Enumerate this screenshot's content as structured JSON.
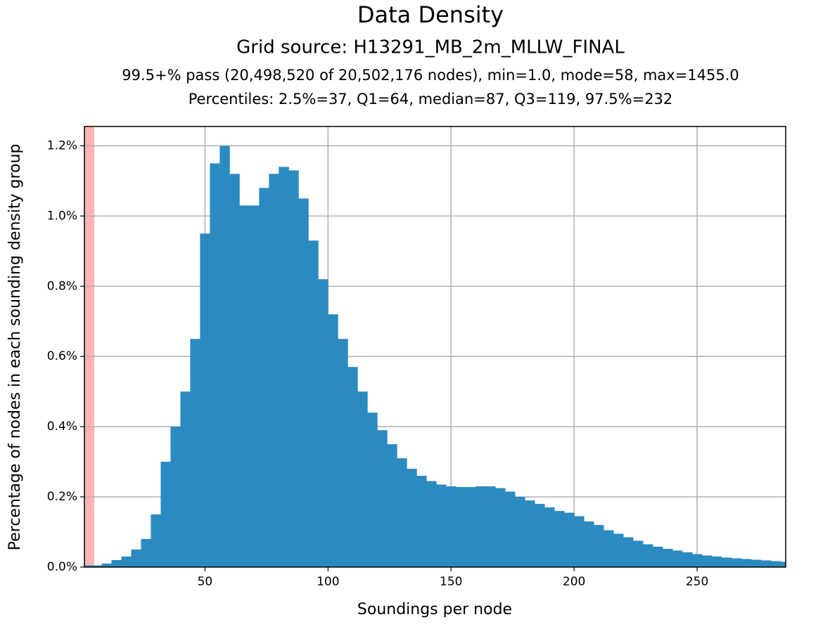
{
  "chart_data": {
    "type": "histogram",
    "title": "Data Density",
    "subtitle": "Grid source: H13291_MB_2m_MLLW_FINAL",
    "annotations": [
      "99.5+% pass (20,498,520 of 20,502,176 nodes), min=1.0, mode=58, max=1455.0",
      "Percentiles: 2.5%=37, Q1=64, median=87, Q3=119, 97.5%=232"
    ],
    "x_label": "Soundings per node",
    "y_label": "Percentage of nodes in each sounding density group",
    "bins": [
      0,
      4,
      8,
      12,
      16,
      20,
      24,
      28,
      32,
      36,
      40,
      44,
      48,
      52,
      56,
      60,
      64,
      68,
      72,
      76,
      80,
      84,
      88,
      92,
      96,
      100,
      104,
      108,
      112,
      116,
      120,
      124,
      128,
      132,
      136,
      140,
      144,
      148,
      152,
      156,
      160,
      164,
      168,
      172,
      176,
      180,
      184,
      188,
      192,
      196,
      200,
      204,
      208,
      212,
      216,
      220,
      224,
      228,
      232,
      236,
      240,
      244,
      248,
      252,
      256,
      260,
      264,
      268,
      272,
      276,
      280,
      284,
      288
    ],
    "counts": [
      0.005,
      0.005,
      0.01,
      0.02,
      0.03,
      0.05,
      0.08,
      0.15,
      0.3,
      0.4,
      0.5,
      0.65,
      0.95,
      1.15,
      1.2,
      1.12,
      1.03,
      1.03,
      1.08,
      1.12,
      1.14,
      1.13,
      1.05,
      0.93,
      0.82,
      0.72,
      0.65,
      0.57,
      0.5,
      0.44,
      0.39,
      0.35,
      0.31,
      0.28,
      0.26,
      0.245,
      0.235,
      0.23,
      0.228,
      0.228,
      0.23,
      0.23,
      0.225,
      0.215,
      0.2,
      0.19,
      0.18,
      0.17,
      0.16,
      0.155,
      0.145,
      0.13,
      0.12,
      0.105,
      0.095,
      0.085,
      0.075,
      0.065,
      0.058,
      0.052,
      0.047,
      0.042,
      0.037,
      0.033,
      0.03,
      0.027,
      0.025,
      0.023,
      0.021,
      0.019,
      0.017,
      0.015
    ],
    "color": "#2b8bc0",
    "highlight_span": {
      "range": [
        0,
        5
      ],
      "color": "#ffb3b3"
    },
    "xlim": [
      1,
      286
    ],
    "xticks": [
      50,
      100,
      150,
      200,
      250
    ],
    "ylim": [
      0,
      1.255
    ],
    "yticks": [
      {
        "value": 0,
        "label": "0.0%"
      },
      {
        "value": 0.2,
        "label": "0.2%"
      },
      {
        "value": 0.4,
        "label": "0.4%"
      },
      {
        "value": 0.6,
        "label": "0.6%"
      },
      {
        "value": 0.8,
        "label": "0.8%"
      },
      {
        "value": 1.0,
        "label": "1.0%"
      },
      {
        "value": 1.2,
        "label": "1.2%"
      }
    ],
    "grid": true
  }
}
